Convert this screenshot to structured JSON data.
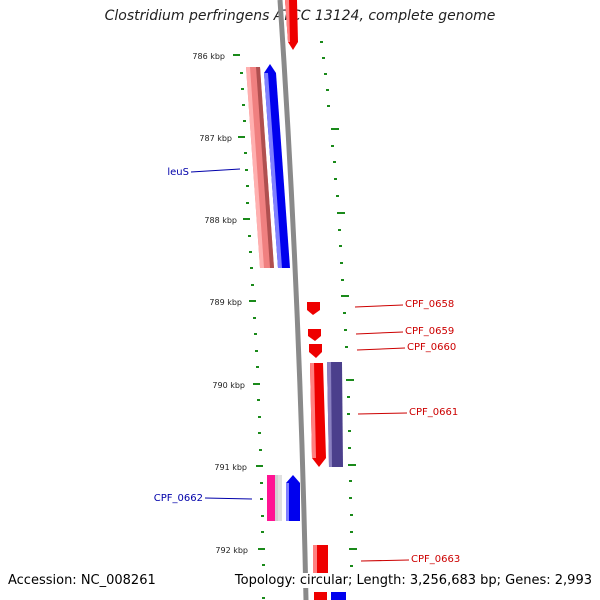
{
  "title": "Clostridium perfringens ATCC 13124, complete genome",
  "accession": "Accession: NC_008261",
  "summary": "Topology: circular; Length: 3,256,683 bp; Genes: 2,993",
  "colors": {
    "forward_gene": "#ff0000",
    "reverse_gene": "#0000ff",
    "rna_pink": "#f08080",
    "dark_purple": "#4b3f8c",
    "magenta": "#ff1493",
    "backbone": "#888888",
    "tick": "#1a8a1a",
    "label_red": "#cc0000",
    "label_blue": "#0000aa"
  },
  "kbp_ticks": [
    "786 kbp",
    "787 kbp",
    "788 kbp",
    "789 kbp",
    "790 kbp",
    "791 kbp",
    "792 kbp"
  ],
  "gene_labels": [
    {
      "text": "leuS",
      "side": "left",
      "color": "blue"
    },
    {
      "text": "CPF_0658",
      "side": "right",
      "color": "red"
    },
    {
      "text": "CPF_0659",
      "side": "right",
      "color": "red"
    },
    {
      "text": "CPF_0660",
      "side": "right",
      "color": "red"
    },
    {
      "text": "CPF_0661",
      "side": "right",
      "color": "red"
    },
    {
      "text": "CPF_0662",
      "side": "left",
      "color": "blue"
    },
    {
      "text": "CPF_0663",
      "side": "right",
      "color": "red"
    }
  ]
}
